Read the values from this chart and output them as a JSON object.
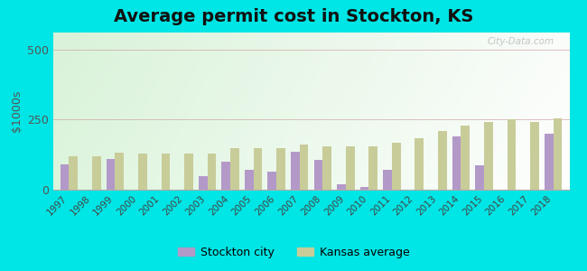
{
  "title": "Average permit cost in Stockton, KS",
  "ylabel": "$1000s",
  "years": [
    1997,
    1998,
    1999,
    2000,
    2001,
    2002,
    2003,
    2004,
    2005,
    2006,
    2007,
    2008,
    2009,
    2010,
    2011,
    2012,
    2013,
    2014,
    2015,
    2016,
    2017,
    2018
  ],
  "stockton_values": [
    90,
    0,
    110,
    0,
    0,
    0,
    48,
    100,
    70,
    65,
    135,
    105,
    18,
    10,
    72,
    0,
    0,
    190,
    88,
    0,
    0,
    200
  ],
  "kansas_values": [
    120,
    118,
    132,
    128,
    128,
    128,
    128,
    148,
    148,
    148,
    160,
    153,
    153,
    153,
    168,
    185,
    210,
    230,
    242,
    252,
    242,
    255
  ],
  "stockton_color": "#b399c8",
  "kansas_color": "#c8cc99",
  "ylim": [
    0,
    560
  ],
  "yticks": [
    0,
    250,
    500
  ],
  "outer_bg": "#00e5e5",
  "title_fontsize": 14,
  "legend_labels": [
    "Stockton city",
    "Kansas average"
  ],
  "watermark": "City-Data.com",
  "bar_width": 0.38
}
